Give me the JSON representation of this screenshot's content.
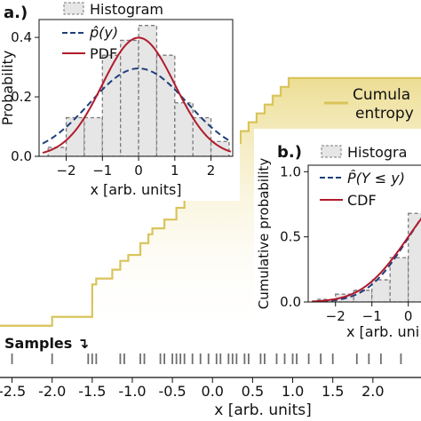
{
  "colors": {
    "staircase": "#d9c45a",
    "staircase_fill_top": "#e8d577",
    "hist_fill": "#e6e6e6",
    "hist_edge": "#7a7a7a",
    "estimate": "#1f3f7a",
    "model": "#b21a2c",
    "ticks": "#6e6e6e",
    "inset_bg": "#ffffff"
  },
  "chart_data": [
    {
      "id": "main",
      "type": "line",
      "xlabel": "x [arb. units]",
      "xlim": [
        -2.65,
        2.6
      ],
      "xticks": [
        "-2.5",
        "-2.0",
        "-1.5",
        "-1.0",
        "-0.5",
        "0.0",
        "0.5",
        "1.0",
        "1.5",
        "2.0"
      ],
      "xtick_values": [
        -2.5,
        -2.0,
        -1.5,
        -1.0,
        -0.5,
        0.0,
        0.5,
        1.0,
        1.5,
        2.0
      ],
      "ylim": [
        0,
        1
      ],
      "legend_entries": [
        "Cumula",
        "entropy"
      ],
      "samples_label": "Samples ↴",
      "samples": [
        -2.5,
        -2.0,
        -1.55,
        -1.5,
        -1.45,
        -1.15,
        -1.1,
        -0.9,
        -0.85,
        -0.65,
        -0.6,
        -0.5,
        -0.45,
        -0.4,
        -0.35,
        -0.25,
        -0.15,
        -0.05,
        0.05,
        0.1,
        0.2,
        0.25,
        0.3,
        0.4,
        0.45,
        0.6,
        0.65,
        0.8,
        0.9,
        1.0,
        1.05,
        1.2,
        1.35,
        1.5,
        1.8,
        1.95,
        2.1,
        2.35
      ],
      "staircase": {
        "x": [
          -2.65,
          -2.0,
          -1.5,
          -1.45,
          -1.25,
          -1.15,
          -1.05,
          -0.9,
          -0.8,
          -0.75,
          -0.6,
          -0.45,
          -0.35,
          -0.25,
          -0.15,
          -0.05,
          0.05,
          0.15,
          0.25,
          0.35,
          0.45,
          0.55,
          0.65,
          0.75,
          0.85,
          0.95
        ],
        "y": [
          0.04,
          0.07,
          0.18,
          0.2,
          0.23,
          0.26,
          0.28,
          0.32,
          0.35,
          0.37,
          0.4,
          0.44,
          0.47,
          0.5,
          0.53,
          0.56,
          0.6,
          0.63,
          0.66,
          0.7,
          0.73,
          0.76,
          0.79,
          0.82,
          0.85,
          0.88
        ]
      }
    },
    {
      "id": "a",
      "panel_label": "a.)",
      "type": "bar",
      "ylabel": "Probability",
      "xlabel": "x [arb. units]",
      "xlim": [
        -2.75,
        2.6
      ],
      "ylim": [
        0,
        0.46
      ],
      "xticks": [
        "−2",
        "−1",
        "0",
        "1",
        "2"
      ],
      "xtick_values": [
        -2,
        -1,
        0,
        1,
        2
      ],
      "yticks": [
        "0.0",
        "0.2",
        "0.4"
      ],
      "ytick_values": [
        0.0,
        0.2,
        0.4
      ],
      "legend": [
        "Histogram",
        "p̂(y)",
        "PDF"
      ],
      "bin_edges": [
        -2.5,
        -2.0,
        -1.5,
        -1.0,
        -0.5,
        0.0,
        0.5,
        1.0,
        1.5,
        2.0,
        2.5
      ],
      "hist_values": [
        0.03,
        0.13,
        0.13,
        0.34,
        0.39,
        0.44,
        0.34,
        0.18,
        0.13,
        0.05
      ],
      "estimate": {
        "mu": 0.0,
        "sigma": 1.35
      },
      "pdf": {
        "mu": 0.0,
        "sigma": 1.0
      }
    },
    {
      "id": "b",
      "panel_label": "b.)",
      "type": "bar",
      "ylabel": "Cumulative probability",
      "xlabel": "x [arb. uni",
      "xlim": [
        -2.75,
        0.35
      ],
      "ylim": [
        0,
        1.05
      ],
      "xticks": [
        "−2",
        "−1",
        "0"
      ],
      "xtick_values": [
        -2,
        -1,
        0
      ],
      "yticks": [
        "0.0",
        "0.5",
        "1.0"
      ],
      "ytick_values": [
        0.0,
        0.5,
        1.0
      ],
      "legend": [
        "Histogra",
        "P̂(Y ≤ y)",
        "CDF"
      ],
      "bin_edges": [
        -2.5,
        -2.0,
        -1.5,
        -1.0,
        -0.5,
        0.0,
        0.5
      ],
      "hist_values": [
        0.02,
        0.06,
        0.09,
        0.17,
        0.34,
        0.68
      ],
      "cdf": {
        "mu": 0.0,
        "sigma": 1.0
      }
    }
  ]
}
